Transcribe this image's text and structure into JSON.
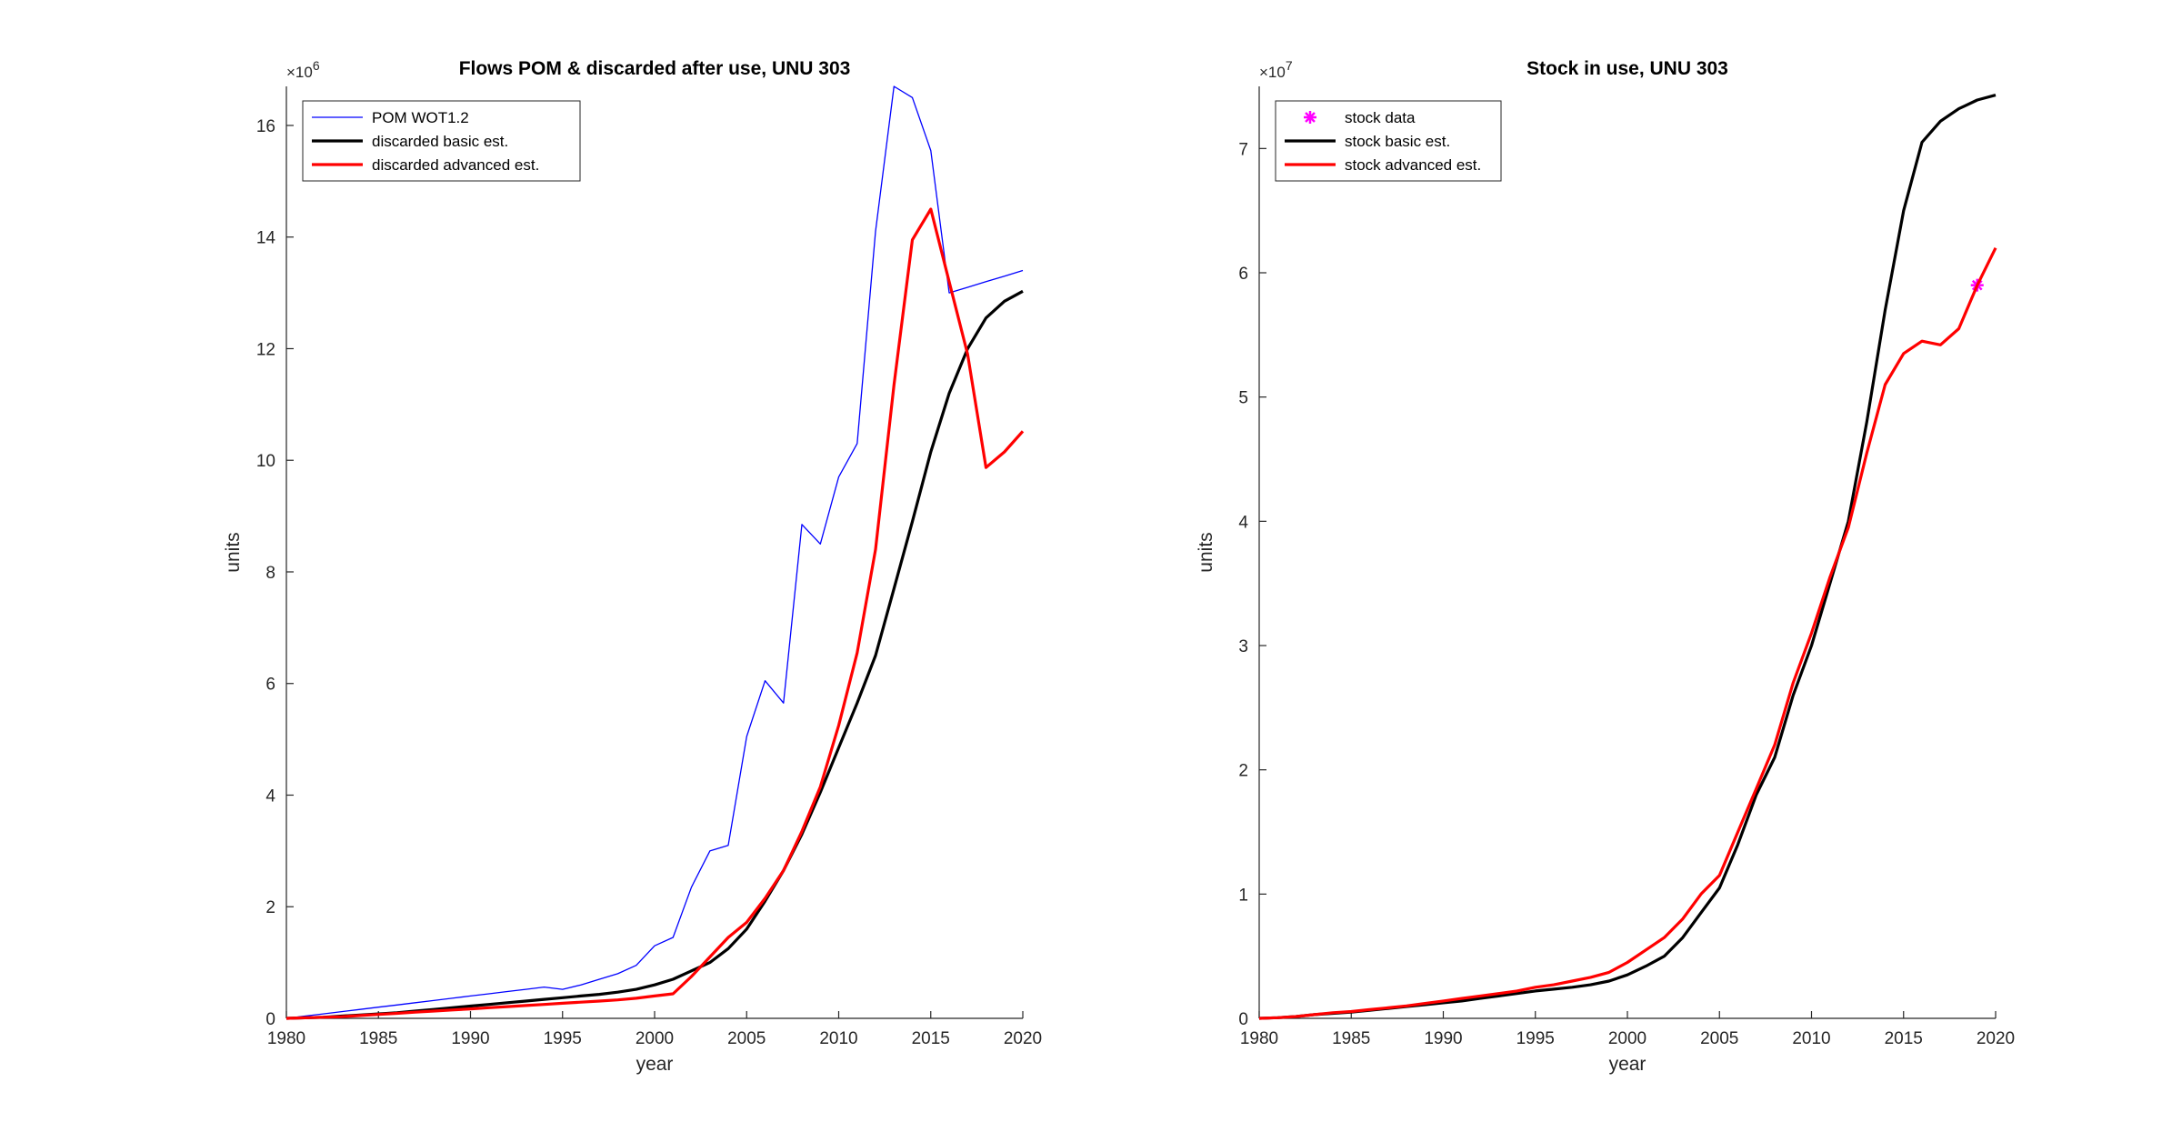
{
  "chart_data": [
    {
      "type": "line",
      "title": "Flows POM & discarded after use, UNU 303",
      "xlabel": "year",
      "ylabel": "units",
      "y_exponent_label": "×10",
      "y_exponent": "6",
      "xlim": [
        1980,
        2020
      ],
      "ylim": [
        0,
        16.7
      ],
      "xticks": [
        "1980",
        "1985",
        "1990",
        "1995",
        "2000",
        "2005",
        "2010",
        "2015",
        "2020"
      ],
      "yticks": [
        "0",
        "2",
        "4",
        "6",
        "8",
        "10",
        "12",
        "14",
        "16"
      ],
      "legend_position": "top-left",
      "series": [
        {
          "name": "POM WOT1.2",
          "color": "#0000ff",
          "style": "thin",
          "x": [
            1980,
            1981,
            1982,
            1983,
            1984,
            1985,
            1986,
            1987,
            1988,
            1989,
            1990,
            1991,
            1992,
            1993,
            1994,
            1995,
            1996,
            1997,
            1998,
            1999,
            2000,
            2001,
            2002,
            2003,
            2004,
            2005,
            2006,
            2007,
            2008,
            2009,
            2010,
            2011,
            2012,
            2013,
            2014,
            2015,
            2016,
            2017,
            2018,
            2019,
            2020
          ],
          "y": [
            0,
            0.04,
            0.08,
            0.12,
            0.16,
            0.2,
            0.24,
            0.28,
            0.32,
            0.36,
            0.4,
            0.44,
            0.48,
            0.52,
            0.56,
            0.52,
            0.6,
            0.7,
            0.8,
            0.95,
            1.3,
            1.45,
            2.35,
            3.0,
            3.1,
            5.05,
            6.05,
            5.65,
            8.85,
            8.5,
            9.7,
            10.3,
            14.1,
            16.7,
            16.5,
            15.55,
            13.0,
            13.1,
            13.2,
            13.3,
            13.4
          ]
        },
        {
          "name": "discarded basic est.",
          "color": "#000000",
          "style": "thick",
          "x": [
            1980,
            1981,
            1982,
            1983,
            1984,
            1985,
            1986,
            1987,
            1988,
            1989,
            1990,
            1991,
            1992,
            1993,
            1994,
            1995,
            1996,
            1997,
            1998,
            1999,
            2000,
            2001,
            2002,
            2003,
            2004,
            2005,
            2006,
            2007,
            2008,
            2009,
            2010,
            2011,
            2012,
            2013,
            2014,
            2015,
            2016,
            2017,
            2018,
            2019,
            2020
          ],
          "y": [
            0,
            0.01,
            0.02,
            0.04,
            0.06,
            0.08,
            0.1,
            0.13,
            0.16,
            0.19,
            0.22,
            0.25,
            0.28,
            0.31,
            0.34,
            0.37,
            0.4,
            0.43,
            0.47,
            0.52,
            0.6,
            0.7,
            0.85,
            1.0,
            1.25,
            1.6,
            2.1,
            2.65,
            3.3,
            4.05,
            4.85,
            5.65,
            6.5,
            7.7,
            8.9,
            10.15,
            11.2,
            12.0,
            12.55,
            12.85,
            13.03
          ]
        },
        {
          "name": "discarded advanced est.",
          "color": "#ff0000",
          "style": "thick",
          "x": [
            1980,
            1981,
            1982,
            1983,
            1984,
            1985,
            1986,
            1987,
            1988,
            1989,
            1990,
            1991,
            1992,
            1993,
            1994,
            1995,
            1996,
            1997,
            1998,
            1999,
            2000,
            2001,
            2002,
            2003,
            2004,
            2005,
            2006,
            2007,
            2008,
            2009,
            2010,
            2011,
            2012,
            2013,
            2014,
            2015,
            2016,
            2017,
            2018,
            2019,
            2020
          ],
          "y": [
            0,
            0.01,
            0.02,
            0.03,
            0.05,
            0.07,
            0.09,
            0.11,
            0.13,
            0.15,
            0.17,
            0.19,
            0.21,
            0.23,
            0.25,
            0.27,
            0.29,
            0.31,
            0.33,
            0.36,
            0.4,
            0.44,
            0.75,
            1.1,
            1.45,
            1.72,
            2.15,
            2.65,
            3.35,
            4.15,
            5.25,
            6.55,
            8.4,
            11.35,
            13.95,
            14.5,
            13.2,
            11.9,
            9.87,
            10.15,
            10.52
          ]
        }
      ]
    },
    {
      "type": "line",
      "title": "Stock in use, UNU 303",
      "xlabel": "year",
      "ylabel": "units",
      "y_exponent_label": "×10",
      "y_exponent": "7",
      "xlim": [
        1980,
        2020
      ],
      "ylim": [
        0,
        7.5
      ],
      "xticks": [
        "1980",
        "1985",
        "1990",
        "1995",
        "2000",
        "2005",
        "2010",
        "2015",
        "2020"
      ],
      "yticks": [
        "0",
        "1",
        "2",
        "3",
        "4",
        "5",
        "6",
        "7"
      ],
      "legend_position": "top-left",
      "series": [
        {
          "name": "stock data",
          "color": "#ff00ff",
          "style": "marker",
          "x": [
            2019
          ],
          "y": [
            5.9
          ]
        },
        {
          "name": "stock basic est.",
          "color": "#000000",
          "style": "thick",
          "x": [
            1980,
            1981,
            1982,
            1983,
            1984,
            1985,
            1986,
            1987,
            1988,
            1989,
            1990,
            1991,
            1992,
            1993,
            1994,
            1995,
            1996,
            1997,
            1998,
            1999,
            2000,
            2001,
            2002,
            2003,
            2004,
            2005,
            2006,
            2007,
            2008,
            2009,
            2010,
            2011,
            2012,
            2013,
            2014,
            2015,
            2016,
            2017,
            2018,
            2019,
            2020
          ],
          "y": [
            0,
            0.005,
            0.015,
            0.03,
            0.04,
            0.05,
            0.065,
            0.08,
            0.095,
            0.11,
            0.125,
            0.14,
            0.16,
            0.18,
            0.2,
            0.22,
            0.235,
            0.25,
            0.27,
            0.3,
            0.35,
            0.42,
            0.5,
            0.65,
            0.85,
            1.05,
            1.4,
            1.8,
            2.1,
            2.6,
            3.0,
            3.5,
            4.0,
            4.8,
            5.7,
            6.5,
            7.05,
            7.22,
            7.32,
            7.39,
            7.43
          ]
        },
        {
          "name": "stock advanced est.",
          "color": "#ff0000",
          "style": "thick",
          "x": [
            1980,
            1981,
            1982,
            1983,
            1984,
            1985,
            1986,
            1987,
            1988,
            1989,
            1990,
            1991,
            1992,
            1993,
            1994,
            1995,
            1996,
            1997,
            1998,
            1999,
            2000,
            2001,
            2002,
            2003,
            2004,
            2005,
            2006,
            2007,
            2008,
            2009,
            2010,
            2011,
            2012,
            2013,
            2014,
            2015,
            2016,
            2017,
            2018,
            2019,
            2020
          ],
          "y": [
            0,
            0.005,
            0.015,
            0.03,
            0.045,
            0.055,
            0.07,
            0.085,
            0.1,
            0.12,
            0.14,
            0.16,
            0.18,
            0.2,
            0.22,
            0.25,
            0.27,
            0.3,
            0.33,
            0.37,
            0.45,
            0.55,
            0.65,
            0.8,
            1.0,
            1.15,
            1.5,
            1.85,
            2.2,
            2.7,
            3.1,
            3.55,
            3.95,
            4.55,
            5.1,
            5.35,
            5.45,
            5.42,
            5.55,
            5.9,
            6.2
          ]
        }
      ]
    }
  ]
}
